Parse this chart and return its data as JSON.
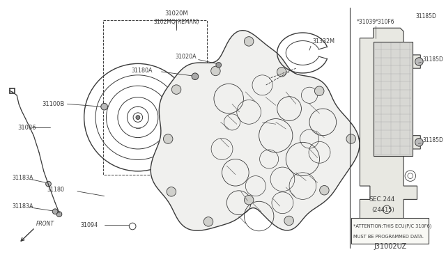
{
  "bg_color": "#ffffff",
  "line_color": "#3a3a3a",
  "diagram_code": "J31002UZ",
  "attention_line1": "*ATTENTION:THIS ECU(P/C 310F6)",
  "attention_line2": "MUST BE PROGRAMMED DATA.",
  "fig_w": 6.4,
  "fig_h": 3.72,
  "dpi": 100,
  "xlim": [
    0,
    640
  ],
  "ylim": [
    0,
    372
  ]
}
